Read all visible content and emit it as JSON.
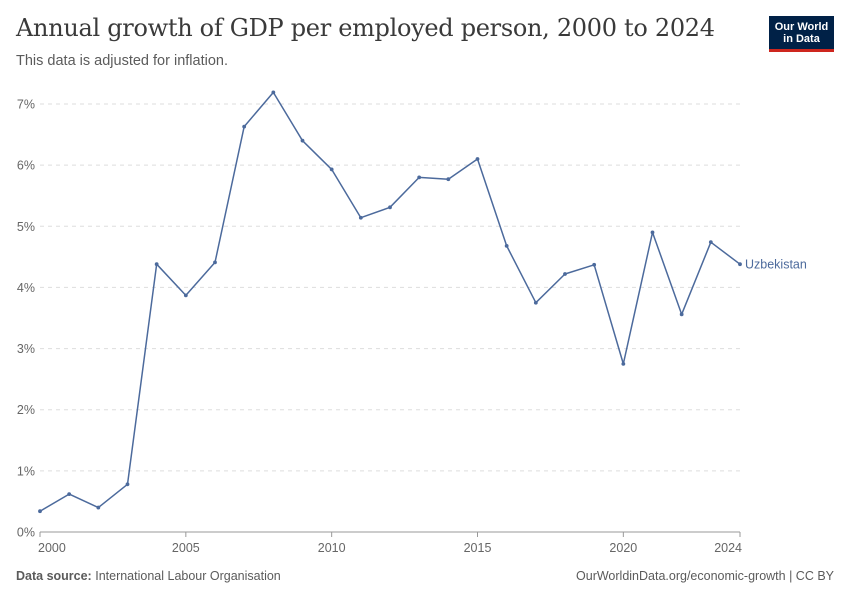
{
  "header": {
    "title": "Annual growth of GDP per employed person, 2000 to 2024",
    "subtitle": "This data is adjusted for inflation."
  },
  "logo": {
    "line1": "Our World",
    "line2": "in Data",
    "bg_color": "#002147",
    "accent_color": "#ce261e"
  },
  "footer": {
    "source_label": "Data source:",
    "source_value": "International Labour Organisation",
    "url": "OurWorldinData.org/economic-growth",
    "separator": " | ",
    "license": "CC BY"
  },
  "chart_data": {
    "type": "line",
    "x": [
      2000,
      2001,
      2002,
      2003,
      2004,
      2005,
      2006,
      2007,
      2008,
      2009,
      2010,
      2011,
      2012,
      2013,
      2014,
      2015,
      2016,
      2017,
      2018,
      2019,
      2020,
      2021,
      2022,
      2023,
      2024
    ],
    "series": [
      {
        "name": "Uzbekistan",
        "color": "#4c6a9c",
        "values": [
          0.34,
          0.62,
          0.4,
          0.78,
          4.38,
          3.87,
          4.41,
          6.63,
          7.19,
          6.4,
          5.93,
          5.14,
          5.31,
          5.8,
          5.77,
          6.1,
          4.68,
          3.75,
          4.22,
          4.37,
          2.75,
          4.9,
          3.56,
          4.74,
          4.38
        ]
      }
    ],
    "xlim": [
      2000,
      2024
    ],
    "ylim": [
      0,
      7
    ],
    "x_ticks": [
      2000,
      2005,
      2010,
      2015,
      2020,
      2024
    ],
    "y_ticks": [
      0,
      1,
      2,
      3,
      4,
      5,
      6,
      7
    ],
    "y_tick_labels": [
      "0%",
      "1%",
      "2%",
      "3%",
      "4%",
      "5%",
      "6%",
      "7%"
    ],
    "x_tick_labels": [
      "2000",
      "2005",
      "2010",
      "2015",
      "2020",
      "2024"
    ],
    "grid": "horizontal dashed",
    "legend": "inline-right"
  }
}
